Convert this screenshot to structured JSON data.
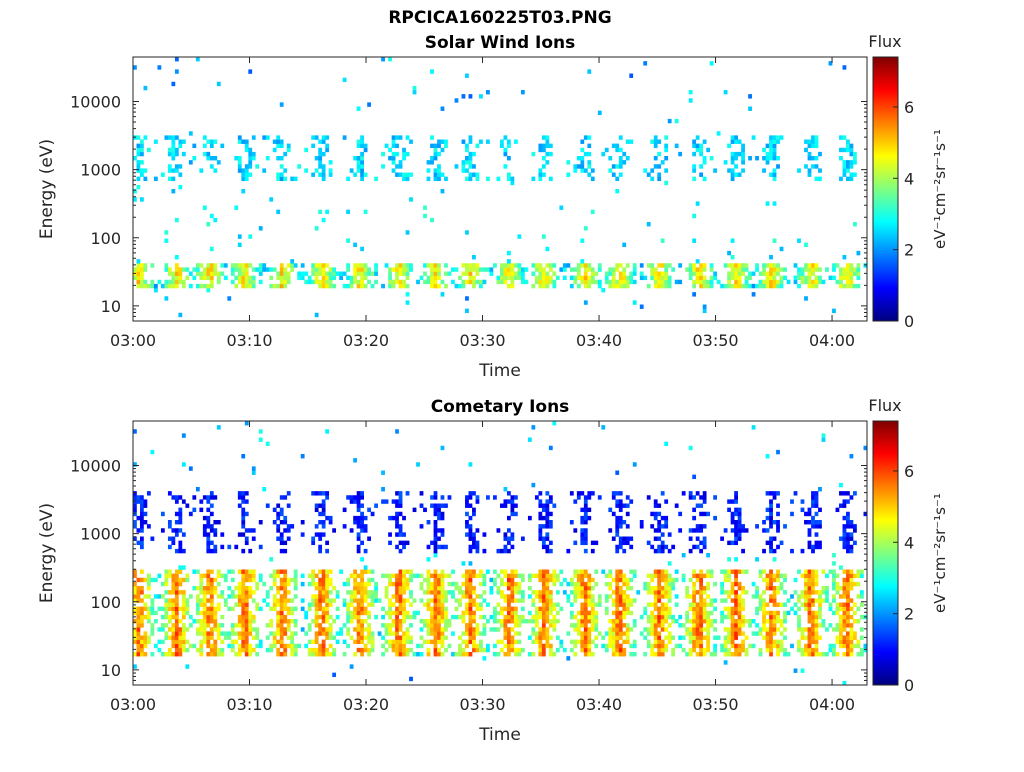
{
  "figure": {
    "title": "RPCICA160225T03.PNG"
  },
  "chart_data": [
    {
      "type": "heatmap",
      "title": "Solar Wind Ions",
      "xlabel": "Time",
      "ylabel": "Energy (eV)",
      "x_ticks": [
        "03:00",
        "03:10",
        "03:20",
        "03:30",
        "03:40",
        "03:50",
        "04:00"
      ],
      "x_tick_minutes": [
        0,
        10,
        20,
        30,
        40,
        50,
        60
      ],
      "xlim_minutes": [
        0,
        63
      ],
      "y_ticks": [
        10,
        100,
        1000,
        10000
      ],
      "y_tick_labels": [
        "10",
        "100",
        "1000",
        "10000"
      ],
      "ylim": [
        6,
        45000
      ],
      "y_scale": "log",
      "colorbar": {
        "title": "Flux",
        "label": "eV⁻¹cm⁻²sr⁻¹s⁻¹",
        "ticks": [
          0,
          2,
          4,
          6
        ],
        "range": [
          0,
          7.4
        ]
      },
      "pattern": {
        "cycle_minutes": [
          0.5,
          3.8,
          6.6,
          9.6,
          12.8,
          16.2,
          19.5,
          22.8,
          26.0,
          29.0,
          32.3,
          35.3,
          38.8,
          41.8,
          45.2,
          48.6,
          51.8,
          54.8,
          58.2,
          61.3
        ],
        "high_energy_band_ev": [
          700,
          3000
        ],
        "high_energy_flux": 2.4,
        "low_energy_band_ev": [
          18,
          45
        ],
        "low_energy_flux": 4.2
      }
    },
    {
      "type": "heatmap",
      "title": "Cometary Ions",
      "xlabel": "Time",
      "ylabel": "Energy (eV)",
      "x_ticks": [
        "03:00",
        "03:10",
        "03:20",
        "03:30",
        "03:40",
        "03:50",
        "04:00"
      ],
      "x_tick_minutes": [
        0,
        10,
        20,
        30,
        40,
        50,
        60
      ],
      "xlim_minutes": [
        0,
        63
      ],
      "y_ticks": [
        10,
        100,
        1000,
        10000
      ],
      "y_tick_labels": [
        "10",
        "100",
        "1000",
        "10000"
      ],
      "ylim": [
        6,
        45000
      ],
      "y_scale": "log",
      "colorbar": {
        "title": "Flux",
        "label": "eV⁻¹cm⁻²sr⁻¹s⁻¹",
        "ticks": [
          0,
          2,
          4,
          6
        ],
        "range": [
          0,
          7.4
        ]
      },
      "pattern": {
        "cycle_minutes": [
          0.5,
          3.8,
          6.6,
          9.6,
          12.8,
          16.2,
          19.5,
          22.8,
          26.0,
          29.0,
          32.3,
          35.3,
          38.8,
          41.8,
          45.2,
          48.6,
          51.8,
          54.8,
          58.2,
          61.3
        ],
        "high_energy_band_ev": [
          500,
          4000
        ],
        "high_energy_flux": 1.0,
        "low_energy_band_ev": [
          15,
          300
        ],
        "low_energy_flux": 5.0
      }
    }
  ]
}
